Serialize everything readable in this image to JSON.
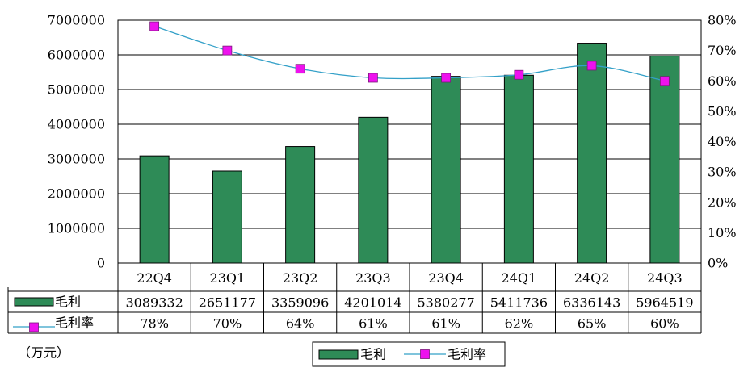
{
  "chart_data": {
    "type": "bar",
    "categories": [
      "22Q4",
      "23Q1",
      "23Q2",
      "23Q3",
      "23Q4",
      "24Q1",
      "24Q2",
      "24Q3"
    ],
    "series": [
      {
        "name": "毛利",
        "type": "bar",
        "axis": "left",
        "values": [
          3089332,
          2651177,
          3359096,
          4201014,
          5380277,
          5411736,
          6336143,
          5964519
        ],
        "table_labels": [
          "3089332",
          "2651177",
          "3359096",
          "4201014",
          "5380277",
          "5411736",
          "6336143",
          "5964519"
        ],
        "color": "#2e8b57"
      },
      {
        "name": "毛利率",
        "type": "line",
        "axis": "right",
        "values": [
          78,
          70,
          64,
          61,
          61,
          62,
          65,
          60
        ],
        "table_labels": [
          "78%",
          "70%",
          "64%",
          "61%",
          "61%",
          "62%",
          "65%",
          "60%"
        ],
        "color": "#33a0c8",
        "marker_color": "#ee11ee"
      }
    ],
    "y_left": {
      "ylim": [
        0,
        7000000
      ],
      "ticks": [
        0,
        1000000,
        2000000,
        3000000,
        4000000,
        5000000,
        6000000,
        7000000
      ],
      "tick_labels": [
        "0",
        "1000000",
        "2000000",
        "3000000",
        "4000000",
        "5000000",
        "6000000",
        "7000000"
      ]
    },
    "y_right": {
      "ylim": [
        0,
        80
      ],
      "ticks": [
        0,
        10,
        20,
        30,
        40,
        50,
        60,
        70,
        80
      ],
      "tick_labels": [
        "0%",
        "10%",
        "20%",
        "30%",
        "40%",
        "50%",
        "60%",
        "70%",
        "80%"
      ]
    },
    "unit_label": "（万元）",
    "legend": {
      "position": "bottom-center",
      "entries": [
        "毛利",
        "毛利率"
      ]
    },
    "grid": true,
    "data_table": true
  }
}
